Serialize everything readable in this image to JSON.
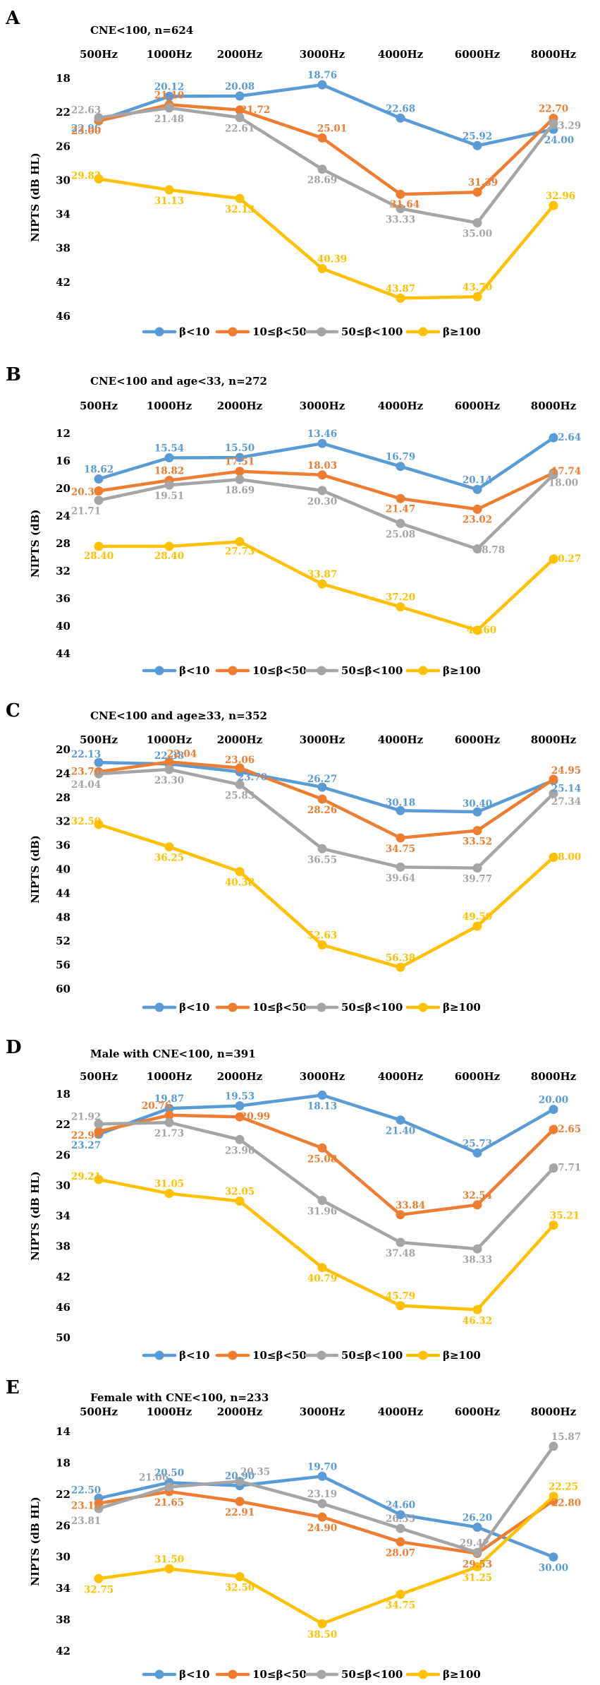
{
  "chart_data": [
    {
      "panel": "A",
      "type": "line",
      "title": "CNE<100, n=624",
      "ylabel": "NIPTS (dB HL)",
      "xlabel": "",
      "categories": [
        "500Hz",
        "1000Hz",
        "2000Hz",
        "3000Hz",
        "4000Hz",
        "6000Hz",
        "8000Hz"
      ],
      "ylim": [
        18,
        46
      ],
      "yticks": [
        18,
        22,
        26,
        30,
        34,
        38,
        42,
        46
      ],
      "y_inverted": true,
      "grid": false,
      "legend": "bottom",
      "series": [
        {
          "name": "β<10",
          "color": "#5B9BD5",
          "values": [
            22.96,
            20.12,
            20.08,
            18.76,
            22.68,
            25.92,
            24.0
          ]
        },
        {
          "name": "10≤β<50",
          "color": "#ED7D31",
          "values": [
            23.0,
            21.1,
            21.72,
            25.01,
            31.64,
            31.39,
            22.7
          ]
        },
        {
          "name": "50≤β<100",
          "color": "#A5A5A5",
          "values": [
            22.63,
            21.48,
            22.61,
            28.69,
            33.33,
            35.0,
            23.29
          ]
        },
        {
          "name": "β≥100",
          "color": "#FFC000",
          "values": [
            29.83,
            31.13,
            32.13,
            40.39,
            43.87,
            43.7,
            32.96
          ]
        }
      ]
    },
    {
      "panel": "B",
      "type": "line",
      "title": "CNE<100 and age<33, n=272",
      "ylabel": "NIPTS (dB)",
      "xlabel": "",
      "categories": [
        "500Hz",
        "1000Hz",
        "2000Hz",
        "3000Hz",
        "4000Hz",
        "6000Hz",
        "8000Hz"
      ],
      "ylim": [
        12,
        44
      ],
      "yticks": [
        12,
        16,
        20,
        24,
        28,
        32,
        36,
        40,
        44
      ],
      "y_inverted": true,
      "grid": false,
      "legend": "bottom",
      "series": [
        {
          "name": "β<10",
          "color": "#5B9BD5",
          "values": [
            18.62,
            15.54,
            15.5,
            13.46,
            16.79,
            20.14,
            12.64
          ]
        },
        {
          "name": "10≤β<50",
          "color": "#ED7D31",
          "values": [
            20.35,
            18.82,
            17.51,
            18.03,
            21.47,
            23.02,
            17.74
          ]
        },
        {
          "name": "50≤β<100",
          "color": "#A5A5A5",
          "values": [
            21.71,
            19.51,
            18.69,
            20.3,
            25.08,
            28.78,
            18.0
          ]
        },
        {
          "name": "β≥100",
          "color": "#FFC000",
          "values": [
            28.4,
            28.4,
            27.73,
            33.87,
            37.2,
            40.6,
            30.27
          ]
        }
      ]
    },
    {
      "panel": "C",
      "type": "line",
      "title": "CNE<100 and age≥33, n=352",
      "ylabel": "NIPTS (dB)",
      "xlabel": "",
      "categories": [
        "500Hz",
        "1000Hz",
        "2000Hz",
        "3000Hz",
        "4000Hz",
        "6000Hz",
        "8000Hz"
      ],
      "ylim": [
        20,
        60
      ],
      "yticks": [
        20,
        24,
        28,
        32,
        36,
        40,
        44,
        48,
        52,
        56,
        60
      ],
      "y_inverted": true,
      "grid": false,
      "legend": "bottom",
      "series": [
        {
          "name": "β<10",
          "color": "#5B9BD5",
          "values": [
            22.13,
            22.38,
            23.7,
            26.27,
            30.18,
            30.4,
            25.14
          ]
        },
        {
          "name": "10≤β<50",
          "color": "#ED7D31",
          "values": [
            23.7,
            22.04,
            23.06,
            28.26,
            34.75,
            33.52,
            24.95
          ]
        },
        {
          "name": "50≤β<100",
          "color": "#A5A5A5",
          "values": [
            24.04,
            23.3,
            25.83,
            36.55,
            39.64,
            39.77,
            27.34
          ]
        },
        {
          "name": "β≥100",
          "color": "#FFC000",
          "values": [
            32.5,
            36.25,
            40.38,
            52.63,
            56.38,
            49.5,
            38.0
          ]
        }
      ]
    },
    {
      "panel": "D",
      "type": "line",
      "title": "Male with CNE<100, n=391",
      "ylabel": "NIPTS (dB HL)",
      "xlabel": "",
      "categories": [
        "500Hz",
        "1000Hz",
        "2000Hz",
        "3000Hz",
        "4000Hz",
        "6000Hz",
        "8000Hz"
      ],
      "ylim": [
        18,
        50
      ],
      "yticks": [
        18,
        22,
        26,
        30,
        34,
        38,
        42,
        46,
        50
      ],
      "y_inverted": true,
      "grid": false,
      "legend": "bottom",
      "series": [
        {
          "name": "β<10",
          "color": "#5B9BD5",
          "values": [
            23.27,
            19.87,
            19.53,
            18.13,
            21.4,
            25.73,
            20.0
          ]
        },
        {
          "name": "10≤β<50",
          "color": "#ED7D31",
          "values": [
            22.9,
            20.76,
            20.99,
            25.08,
            33.84,
            32.54,
            22.65
          ]
        },
        {
          "name": "50≤β<100",
          "color": "#A5A5A5",
          "values": [
            21.92,
            21.73,
            23.96,
            31.96,
            37.48,
            38.33,
            27.71
          ]
        },
        {
          "name": "β≥100",
          "color": "#FFC000",
          "values": [
            29.21,
            31.05,
            32.05,
            40.79,
            45.79,
            46.32,
            35.21
          ]
        }
      ]
    },
    {
      "panel": "E",
      "type": "line",
      "title": "Female with CNE<100, n=233",
      "ylabel": "NIPTS (dB HL)",
      "xlabel": "",
      "categories": [
        "500Hz",
        "1000Hz",
        "2000Hz",
        "3000Hz",
        "4000Hz",
        "6000Hz",
        "8000Hz"
      ],
      "ylim": [
        14,
        42
      ],
      "yticks": [
        14,
        18,
        22,
        26,
        30,
        34,
        38,
        42
      ],
      "y_inverted": true,
      "grid": false,
      "legend": "bottom",
      "series": [
        {
          "name": "β<10",
          "color": "#5B9BD5",
          "values": [
            22.5,
            20.5,
            20.9,
            19.7,
            24.6,
            26.2,
            30.0
          ]
        },
        {
          "name": "10≤β<50",
          "color": "#ED7D31",
          "values": [
            23.16,
            21.65,
            22.91,
            24.9,
            28.07,
            29.53,
            22.8
          ]
        },
        {
          "name": "50≤β<100",
          "color": "#A5A5A5",
          "values": [
            23.81,
            21.06,
            20.35,
            23.19,
            26.35,
            29.42,
            15.87
          ]
        },
        {
          "name": "β≥100",
          "color": "#FFC000",
          "values": [
            32.75,
            31.5,
            32.5,
            38.5,
            34.75,
            31.25,
            22.25
          ]
        }
      ]
    }
  ]
}
